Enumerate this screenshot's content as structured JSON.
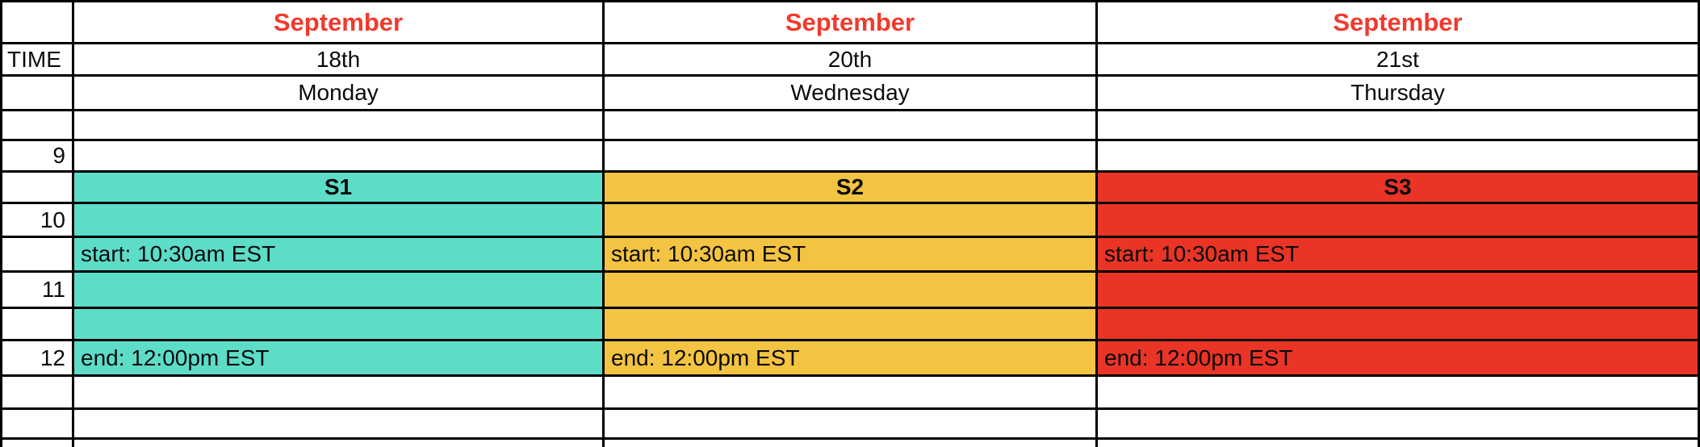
{
  "table": {
    "time_header": "TIME",
    "hours": {
      "h9": "9",
      "h10": "10",
      "h11": "11",
      "h12": "12"
    },
    "columns": [
      {
        "month": "September",
        "date": "18th",
        "day": "Monday",
        "session_label": "S1",
        "start": "start: 10:30am EST",
        "end": "end: 12:00pm EST"
      },
      {
        "month": "September",
        "date": "20th",
        "day": "Wednesday",
        "session_label": "S2",
        "start": "start: 10:30am EST",
        "end": "end: 12:00pm EST"
      },
      {
        "month": "September",
        "date": "21st",
        "day": "Thursday",
        "session_label": "S3",
        "start": "start: 10:30am EST",
        "end": "end: 12:00pm EST"
      }
    ],
    "colors": {
      "month_text": "#F2392C",
      "session1": "#5DDCC8",
      "session2": "#F3C342",
      "session3": "#E93426",
      "border": "#000000"
    }
  }
}
